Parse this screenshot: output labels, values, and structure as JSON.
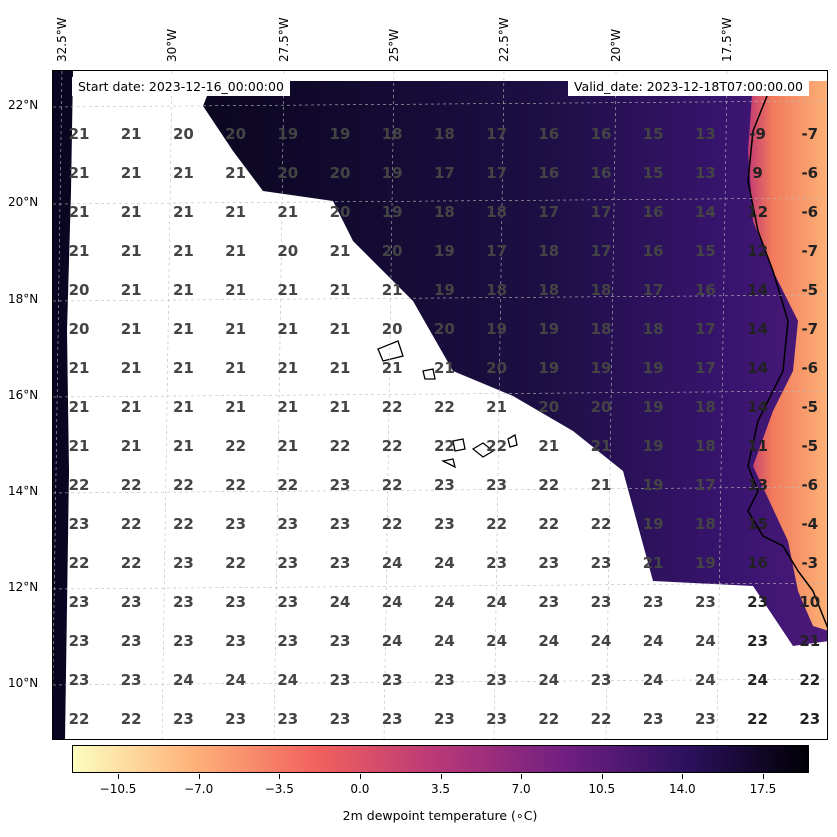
{
  "header": {
    "start_date": "Start date: 2023-12-16_00:00:00",
    "valid_date": "Valid_date: 2023-12-18T07:00:00.00"
  },
  "axes": {
    "lon_labels": [
      "32.5°W",
      "30°W",
      "27.5°W",
      "25°W",
      "22.5°W",
      "20°W",
      "17.5°W"
    ],
    "lat_labels": [
      "22°N",
      "20°N",
      "18°N",
      "16°N",
      "14°N",
      "12°N",
      "10°N"
    ]
  },
  "colorbar": {
    "label": "2m dewpoint temperature ($^\\circ$C)",
    "label_display": "2m dewpoint temperature (∘C)",
    "ticks": [
      "−10.5",
      "−7.0",
      "−3.5",
      "0.0",
      "3.5",
      "7.0",
      "10.5",
      "14.0",
      "17.5"
    ],
    "tick_values": [
      -10.5,
      -7.0,
      -3.5,
      0.0,
      3.5,
      7.0,
      10.5,
      14.0,
      17.5
    ],
    "range": [
      -12.5,
      19.5
    ],
    "colormap": "magma_r",
    "colors": [
      "#fcfdbf",
      "#feb078",
      "#f1605d",
      "#b73779",
      "#721f81",
      "#2c115f",
      "#000004"
    ]
  },
  "chart_data": {
    "type": "heatmap",
    "title": "",
    "variable": "2m dewpoint temperature",
    "units": "°C",
    "grid_values": [
      [
        21,
        21,
        20,
        20,
        19,
        19,
        18,
        18,
        17,
        16,
        16,
        15,
        13,
        -9,
        -7
      ],
      [
        21,
        21,
        21,
        21,
        20,
        20,
        19,
        17,
        17,
        16,
        16,
        15,
        13,
        9,
        -6
      ],
      [
        21,
        21,
        21,
        21,
        21,
        20,
        19,
        18,
        18,
        17,
        17,
        16,
        14,
        12,
        -6
      ],
      [
        21,
        21,
        21,
        21,
        20,
        21,
        20,
        19,
        17,
        18,
        17,
        16,
        15,
        12,
        -7
      ],
      [
        20,
        21,
        21,
        21,
        21,
        21,
        21,
        19,
        18,
        18,
        18,
        17,
        16,
        14,
        -5
      ],
      [
        20,
        21,
        21,
        21,
        21,
        21,
        20,
        20,
        19,
        19,
        18,
        18,
        17,
        14,
        -7
      ],
      [
        21,
        21,
        21,
        21,
        21,
        21,
        21,
        21,
        20,
        19,
        19,
        19,
        17,
        14,
        -6
      ],
      [
        21,
        21,
        21,
        21,
        21,
        21,
        22,
        22,
        21,
        20,
        20,
        19,
        18,
        14,
        -5
      ],
      [
        21,
        21,
        21,
        22,
        21,
        22,
        22,
        22,
        22,
        21,
        21,
        19,
        18,
        11,
        -5
      ],
      [
        22,
        22,
        22,
        22,
        22,
        23,
        22,
        23,
        23,
        22,
        21,
        19,
        17,
        13,
        -6
      ],
      [
        23,
        22,
        22,
        23,
        23,
        23,
        22,
        23,
        22,
        22,
        22,
        19,
        18,
        15,
        -4
      ],
      [
        22,
        22,
        23,
        22,
        23,
        23,
        24,
        24,
        23,
        23,
        23,
        21,
        19,
        16,
        -3
      ],
      [
        23,
        23,
        23,
        23,
        23,
        24,
        24,
        24,
        24,
        23,
        23,
        23,
        23,
        23,
        10
      ],
      [
        23,
        23,
        23,
        23,
        23,
        23,
        24,
        24,
        24,
        24,
        24,
        24,
        24,
        23,
        21
      ],
      [
        23,
        23,
        24,
        24,
        24,
        23,
        23,
        23,
        23,
        24,
        23,
        24,
        24,
        24,
        22
      ],
      [
        22,
        22,
        23,
        23,
        23,
        23,
        23,
        23,
        23,
        22,
        22,
        23,
        23,
        22,
        23
      ]
    ]
  }
}
